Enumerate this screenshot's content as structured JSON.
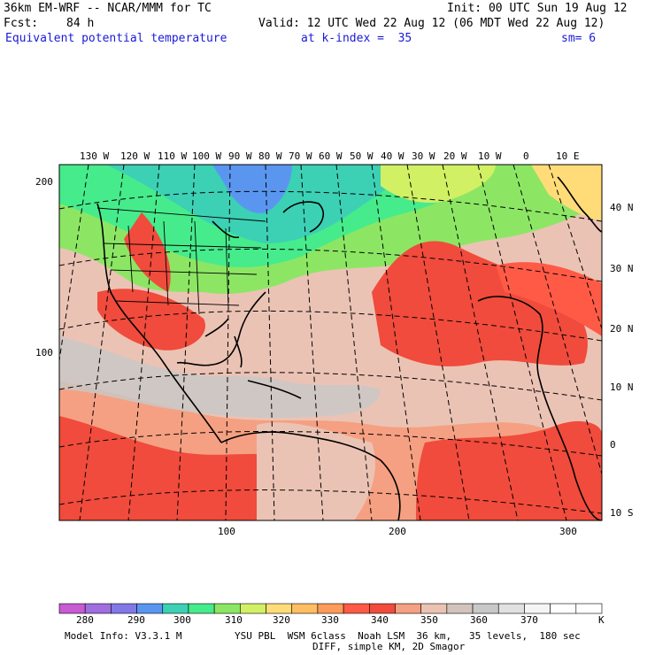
{
  "header": {
    "model": "36km EM-WRF -- NCAR/MMM for TC",
    "init": "Init: 00 UTC Sun 19 Aug 12",
    "fcst_label": "Fcst:",
    "fcst_value": "84 h",
    "valid": "Valid: 12 UTC Wed 22 Aug 12 (06 MDT Wed 22 Aug 12)",
    "field": "Equivalent potential temperature",
    "level": "at k-index =  35",
    "smooth": "sm= 6"
  },
  "map": {
    "lon_labels": [
      "130 W",
      "120 W",
      "110 W",
      "100 W",
      "90 W",
      "80 W",
      "70 W",
      "60 W",
      "50 W",
      "40 W",
      "30 W",
      "20 W",
      "10 W",
      "0",
      "10 E"
    ],
    "lat_labels": [
      "40 N",
      "30 N",
      "20 N",
      "10 N",
      "0",
      "10 S"
    ],
    "grid_y_labels": [
      "200",
      "100"
    ],
    "grid_x_labels": [
      "100",
      "200",
      "300"
    ]
  },
  "colorbar": {
    "ticks": [
      "280",
      "290",
      "300",
      "310",
      "320",
      "330",
      "340",
      "350",
      "360",
      "370"
    ],
    "unit": "K",
    "colors": [
      "#c85ad2",
      "#a06ee0",
      "#8278e6",
      "#5a96f0",
      "#3cd0b4",
      "#46eb8c",
      "#8ce664",
      "#d2f064",
      "#ffdc78",
      "#ffbe64",
      "#ff9b5a",
      "#ff5a46",
      "#f04b3c",
      "#f5a082",
      "#ebc3b4",
      "#d2c3bc",
      "#c8c8c8",
      "#e1e1e1",
      "#f5f5f5",
      "#ffffff",
      "#ffffff"
    ]
  },
  "footer": {
    "line1": "Model Info: V3.3.1 M         YSU PBL  WSM 6class  Noah LSM  36 km,   35 levels,  180 sec",
    "line2": "DIFF, simple KM, 2D Smagor"
  }
}
